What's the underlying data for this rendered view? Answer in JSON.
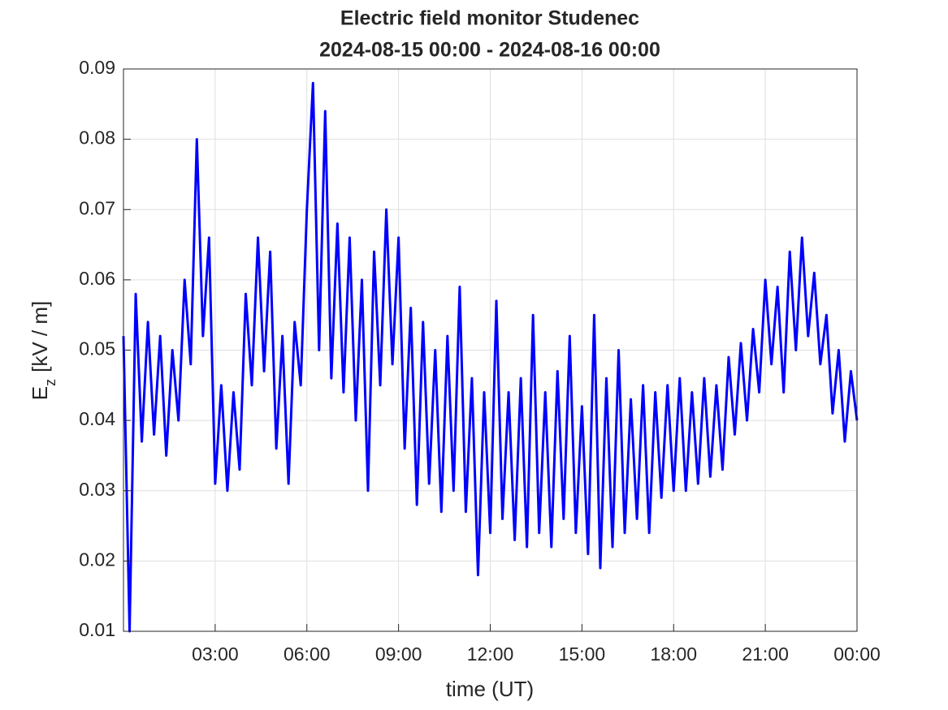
{
  "chart_data": {
    "type": "line",
    "title": "Electric field monitor Studenec",
    "subtitle": "2024-08-15 00:00 - 2024-08-16 00:00",
    "xlabel": "time (UT)",
    "ylabel": {
      "main": "E",
      "subscript": "z",
      "unit": "[kV / m]"
    },
    "xlim": [
      0,
      24
    ],
    "xticks": [
      {
        "value": 3,
        "label": "03:00"
      },
      {
        "value": 6,
        "label": "06:00"
      },
      {
        "value": 9,
        "label": "09:00"
      },
      {
        "value": 12,
        "label": "12:00"
      },
      {
        "value": 15,
        "label": "15:00"
      },
      {
        "value": 18,
        "label": "18:00"
      },
      {
        "value": 21,
        "label": "21:00"
      },
      {
        "value": 24,
        "label": "00:00"
      }
    ],
    "ylim": [
      0.01,
      0.09
    ],
    "yticks": [
      0.01,
      0.02,
      0.03,
      0.04,
      0.05,
      0.06,
      0.07,
      0.08,
      0.09
    ],
    "grid": true,
    "x": [
      0,
      0.2,
      0.4,
      0.6,
      0.8,
      1,
      1.2,
      1.4,
      1.6,
      1.8,
      2,
      2.2,
      2.4,
      2.6,
      2.8,
      3,
      3.2,
      3.4,
      3.6,
      3.8,
      4,
      4.2,
      4.4,
      4.6,
      4.8,
      5,
      5.2,
      5.4,
      5.6,
      5.8,
      6,
      6.2,
      6.4,
      6.6,
      6.8,
      7,
      7.2,
      7.4,
      7.6,
      7.8,
      8,
      8.2,
      8.4,
      8.6,
      8.8,
      9,
      9.2,
      9.4,
      9.6,
      9.8,
      10,
      10.2,
      10.4,
      10.6,
      10.8,
      11,
      11.2,
      11.4,
      11.6,
      11.8,
      12,
      12.2,
      12.4,
      12.6,
      12.8,
      13,
      13.2,
      13.4,
      13.6,
      13.8,
      14,
      14.2,
      14.4,
      14.6,
      14.8,
      15,
      15.2,
      15.4,
      15.6,
      15.8,
      16,
      16.2,
      16.4,
      16.6,
      16.8,
      17,
      17.2,
      17.4,
      17.6,
      17.8,
      18,
      18.2,
      18.4,
      18.6,
      18.8,
      19,
      19.2,
      19.4,
      19.6,
      19.8,
      20,
      20.2,
      20.4,
      20.6,
      20.8,
      21,
      21.2,
      21.4,
      21.6,
      21.8,
      22,
      22.2,
      22.4,
      22.6,
      22.8,
      23,
      23.2,
      23.4,
      23.6,
      23.8,
      24
    ],
    "series": [
      {
        "color": "#0000ff",
        "values": [
          0.052,
          0.01,
          0.058,
          0.037,
          0.054,
          0.038,
          0.052,
          0.035,
          0.05,
          0.04,
          0.06,
          0.048,
          0.08,
          0.052,
          0.066,
          0.031,
          0.045,
          0.03,
          0.044,
          0.033,
          0.058,
          0.045,
          0.066,
          0.047,
          0.064,
          0.036,
          0.052,
          0.031,
          0.054,
          0.045,
          0.07,
          0.088,
          0.05,
          0.084,
          0.046,
          0.068,
          0.044,
          0.066,
          0.04,
          0.06,
          0.03,
          0.064,
          0.045,
          0.07,
          0.048,
          0.066,
          0.036,
          0.056,
          0.028,
          0.054,
          0.031,
          0.05,
          0.027,
          0.052,
          0.03,
          0.059,
          0.027,
          0.046,
          0.018,
          0.044,
          0.024,
          0.057,
          0.026,
          0.044,
          0.023,
          0.046,
          0.022,
          0.055,
          0.024,
          0.044,
          0.022,
          0.047,
          0.026,
          0.052,
          0.024,
          0.042,
          0.021,
          0.055,
          0.019,
          0.046,
          0.022,
          0.05,
          0.024,
          0.043,
          0.026,
          0.045,
          0.024,
          0.044,
          0.029,
          0.045,
          0.03,
          0.046,
          0.03,
          0.044,
          0.031,
          0.046,
          0.032,
          0.045,
          0.033,
          0.049,
          0.038,
          0.051,
          0.04,
          0.053,
          0.044,
          0.06,
          0.048,
          0.059,
          0.044,
          0.064,
          0.05,
          0.066,
          0.052,
          0.061,
          0.048,
          0.055,
          0.041,
          0.05,
          0.037,
          0.047,
          0.04
        ]
      }
    ]
  }
}
